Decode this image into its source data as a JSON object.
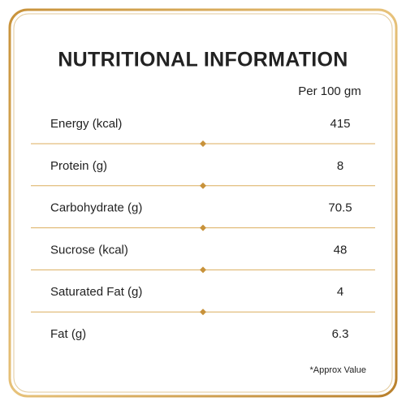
{
  "header": {
    "title": "NUTRITIONAL INFORMATION",
    "column": "Per 100 gm"
  },
  "table": {
    "rows": [
      {
        "label": "Energy (kcal)",
        "value": 415
      },
      {
        "label": "Protein (g)",
        "value": 8
      },
      {
        "label": "Carbohydrate (g)",
        "value": 70.5
      },
      {
        "label": "Sucrose (kcal)",
        "value": 48
      },
      {
        "label": "Saturated Fat (g)",
        "value": 4
      },
      {
        "label": "Fat (g)",
        "value": 6.3
      }
    ]
  },
  "footnote": "*Approx Value"
}
